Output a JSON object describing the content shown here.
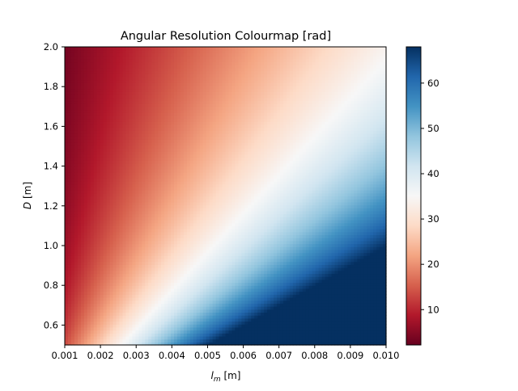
{
  "chart_data": {
    "type": "heatmap",
    "title": "Angular Resolution Colourmap [rad]",
    "xlabel": {
      "main": "l",
      "sub": "m",
      "unit": " [m]"
    },
    "ylabel": {
      "main": "D",
      "unit": " [m]"
    },
    "xlim": [
      0.001,
      0.01
    ],
    "ylim": [
      0.5,
      2.0
    ],
    "xticks": [
      "0.001",
      "0.002",
      "0.003",
      "0.004",
      "0.005",
      "0.006",
      "0.007",
      "0.008",
      "0.009",
      "0.010"
    ],
    "yticks": [
      "0.6",
      "0.8",
      "1.0",
      "1.2",
      "1.4",
      "1.6",
      "1.8",
      "2.0"
    ],
    "colorbar": {
      "colormap": "RdBu",
      "range": [
        2.2,
        68
      ],
      "ticks": [
        "10",
        "20",
        "30",
        "40",
        "50",
        "60"
      ]
    },
    "grid": false,
    "function": "value = 6.8 * l_m * 1000 / D",
    "grid_resolution": [
      100,
      100
    ]
  },
  "colors": {
    "colormap_stops": [
      "#67001f",
      "#b2182b",
      "#d6604d",
      "#f4a582",
      "#fddbc7",
      "#f7f7f7",
      "#d1e5f0",
      "#92c5de",
      "#4393c3",
      "#2166ac",
      "#053061"
    ]
  }
}
